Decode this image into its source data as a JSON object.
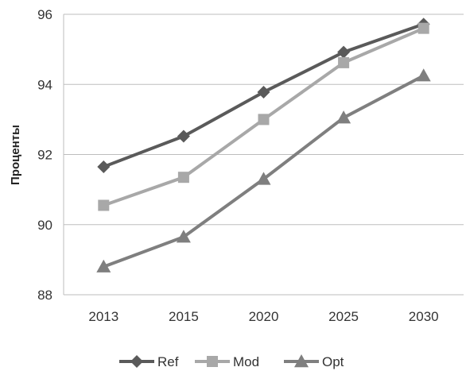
{
  "chart_data": {
    "type": "line",
    "title": "",
    "xlabel": "",
    "ylabel": "Проценты",
    "categories": [
      "2013",
      "2015",
      "2020",
      "2025",
      "2030"
    ],
    "ylim": [
      88,
      96
    ],
    "yticks": [
      "88",
      "90",
      "92",
      "94",
      "96"
    ],
    "grid": "horizontal",
    "legend_position": "bottom",
    "series": [
      {
        "name": "Ref",
        "marker": "diamond",
        "color": "#5a5a5a",
        "values": [
          91.65,
          92.52,
          93.78,
          94.92,
          95.72
        ]
      },
      {
        "name": "Mod",
        "marker": "square",
        "color": "#a8a8a8",
        "values": [
          90.55,
          91.35,
          93.0,
          94.62,
          95.6
        ]
      },
      {
        "name": "Opt",
        "marker": "triangle",
        "color": "#7f7f7f",
        "values": [
          88.8,
          89.65,
          91.3,
          93.05,
          94.25
        ]
      }
    ]
  }
}
